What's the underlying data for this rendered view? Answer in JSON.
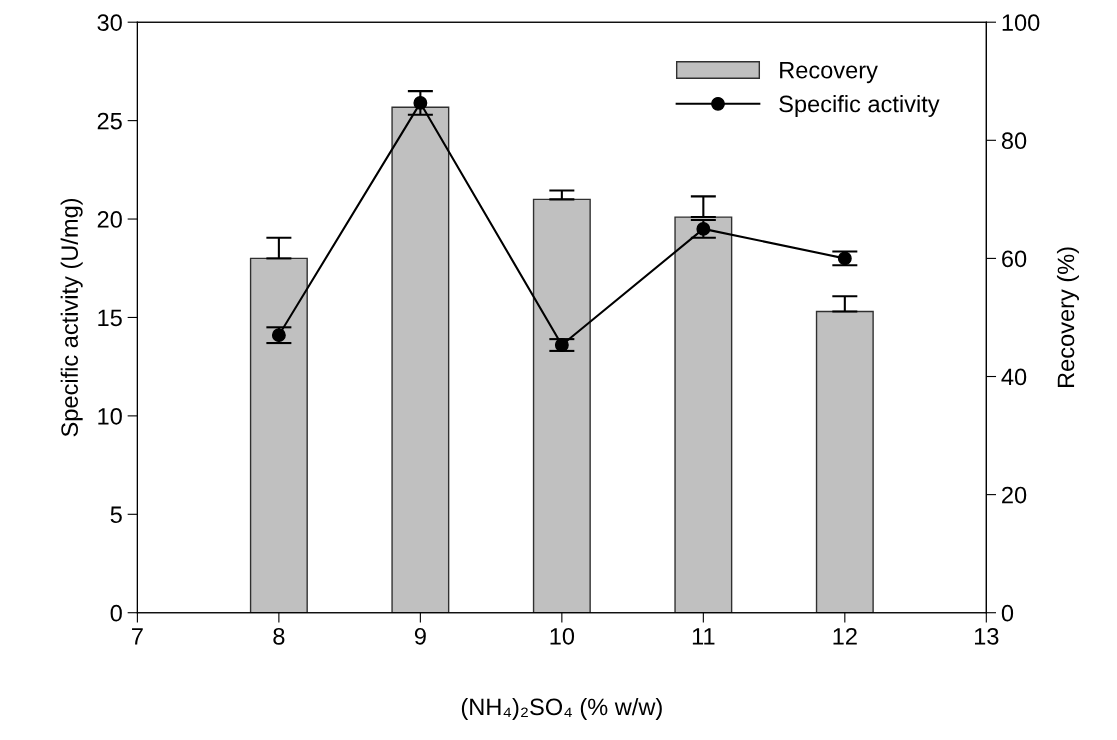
{
  "chart_data": {
    "type": "bar",
    "xlabel": "(NH₄)₂SO₄ (% w/w)",
    "ylabel": "Specific activity (U/mg)",
    "y2label": "Recovery (%)",
    "x": [
      8,
      9,
      10,
      11,
      12
    ],
    "series": [
      {
        "name": "Recovery",
        "axis": "y2",
        "color": "#c0c0c0",
        "values": [
          60,
          85.6,
          70,
          67,
          51
        ],
        "errors": [
          3.5,
          null,
          1.5,
          3.5,
          2.6
        ]
      },
      {
        "name": "Specific activity",
        "type": "line",
        "axis": "y",
        "color": "#000000",
        "values": [
          14.1,
          25.9,
          13.6,
          19.5,
          18.0
        ],
        "errors": [
          0.4,
          0.6,
          0.3,
          0.45,
          0.35
        ]
      }
    ],
    "xlim": [
      7,
      13
    ],
    "xticks": [
      7,
      8,
      9,
      10,
      11,
      12,
      13
    ],
    "ylim": [
      0,
      30
    ],
    "yticks": [
      0,
      5,
      10,
      15,
      20,
      25,
      30
    ],
    "y2lim": [
      0,
      100
    ],
    "y2ticks": [
      0,
      20,
      40,
      60,
      80,
      100
    ],
    "marker": "circle",
    "line_style": "solid",
    "legend": "top right",
    "grid": false
  }
}
